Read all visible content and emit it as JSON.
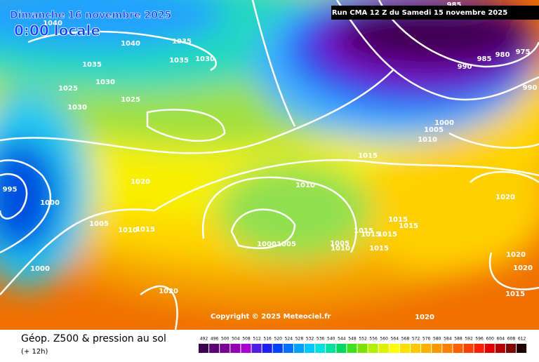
{
  "header": {
    "title": "Dimanche 16 novembre 2025",
    "time": "0:00 locale",
    "run": "Run CMA 12 Z du Samedi 15 novembre 2025"
  },
  "isobar_labels": [
    "1040",
    "1040",
    "1035",
    "1035",
    "1035",
    "1030",
    "1030",
    "1025",
    "1025",
    "1030",
    "985",
    "980",
    "975",
    "985",
    "990",
    "990",
    "1000",
    "1005",
    "1010",
    "1015",
    "1010",
    "1020",
    "1020",
    "995",
    "1000",
    "1005",
    "1010",
    "1015",
    "1015",
    "1015",
    "1015",
    "1015",
    "1015",
    "1000",
    "1005",
    "1005",
    "1010",
    "1015",
    "1020",
    "1020",
    "1000",
    "1020",
    "1015",
    "1020"
  ],
  "copyright": "Copyright © 2025 Meteociel.fr",
  "footer": {
    "title": "Géop. Z500 & pression au sol",
    "lead": "(+ 12h)"
  },
  "scale": [
    492,
    496,
    500,
    504,
    508,
    512,
    516,
    520,
    524,
    528,
    532,
    536,
    540,
    544,
    548,
    552,
    556,
    560,
    564,
    568,
    572,
    576,
    580,
    584,
    588,
    592,
    596,
    600,
    604,
    608,
    612
  ]
}
